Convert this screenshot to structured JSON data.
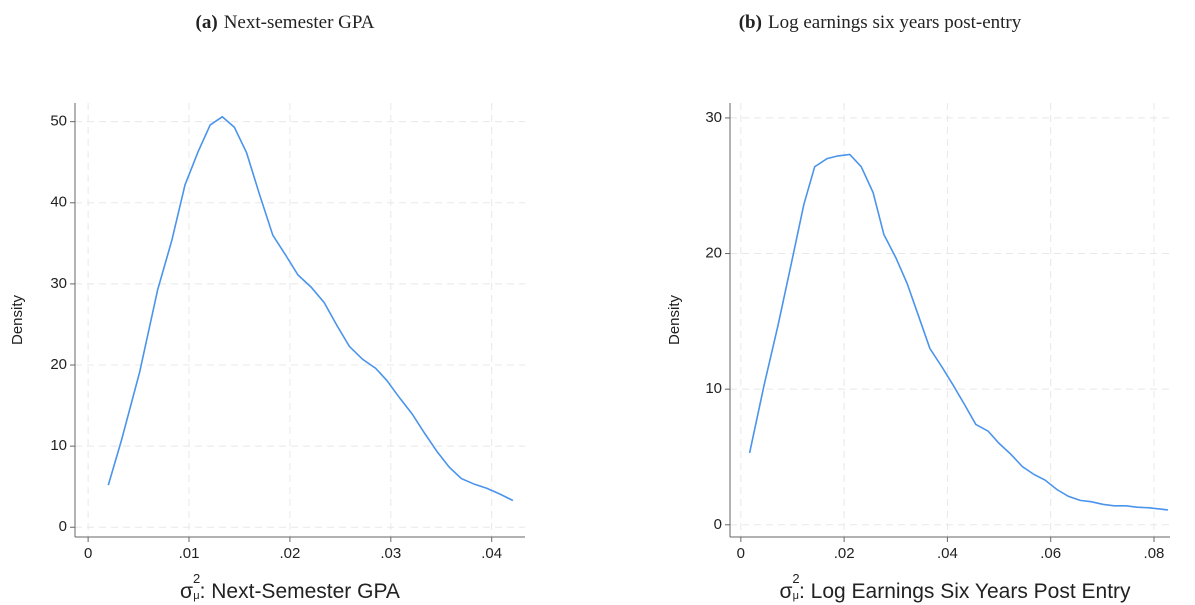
{
  "chart_data": [
    {
      "type": "line",
      "panel": "(a)",
      "title": "Next-semester GPA",
      "ylabel": "Density",
      "xlabel": {
        "symbol": "σ",
        "sup": "2",
        "sub": "μ",
        "text": ": Next-Semester GPA"
      },
      "color": "#4a94ec",
      "grid": true,
      "xlim": [
        -0.0013,
        0.0433
      ],
      "ylim": [
        -1.2,
        52.3
      ],
      "xticks": [
        0,
        {
          "value": 0.01,
          "label": ".01"
        },
        {
          "value": 0.02,
          "label": ".02"
        },
        {
          "value": 0.03,
          "label": ".03"
        },
        {
          "value": 0.04,
          "label": ".04"
        }
      ],
      "yticks": [
        0,
        10,
        20,
        30,
        40,
        50
      ],
      "x": [
        0.002,
        0.0033,
        0.0051,
        0.0069,
        0.0083,
        0.0096,
        0.0109,
        0.0121,
        0.0133,
        0.0145,
        0.0157,
        0.017,
        0.0183,
        0.0196,
        0.0208,
        0.0221,
        0.0234,
        0.0247,
        0.0259,
        0.0272,
        0.0285,
        0.0296,
        0.0309,
        0.0321,
        0.0334,
        0.0346,
        0.0358,
        0.037,
        0.0383,
        0.0395,
        0.0408,
        0.0421
      ],
      "values": [
        5.2,
        10.7,
        19.1,
        29.3,
        35.4,
        42.2,
        46.3,
        49.6,
        50.6,
        49.3,
        46.2,
        41,
        36,
        33.5,
        31.1,
        29.6,
        27.7,
        24.8,
        22.3,
        20.7,
        19.6,
        18.1,
        15.9,
        14,
        11.5,
        9.3,
        7.4,
        6,
        5.3,
        4.8,
        4.1,
        3.3
      ]
    },
    {
      "type": "line",
      "panel": "(b)",
      "title": "Log earnings six years post-entry",
      "ylabel": "Density",
      "xlabel": {
        "symbol": "σ",
        "sup": "2",
        "sub": "μ",
        "text": ": Log Earnings Six Years Post Entry"
      },
      "color": "#4a94ec",
      "grid": true,
      "xlim": [
        -0.0021,
        0.0831
      ],
      "ylim": [
        -0.9,
        31.1
      ],
      "xticks": [
        0,
        {
          "value": 0.02,
          "label": ".02"
        },
        {
          "value": 0.04,
          "label": ".04"
        },
        {
          "value": 0.06,
          "label": ".06"
        },
        {
          "value": 0.08,
          "label": ".08"
        }
      ],
      "yticks": [
        0,
        10,
        20,
        30
      ],
      "x": [
        0.0017,
        0.0045,
        0.0072,
        0.0099,
        0.0122,
        0.0143,
        0.0167,
        0.0188,
        0.0211,
        0.0233,
        0.0256,
        0.0277,
        0.03,
        0.0322,
        0.0345,
        0.0366,
        0.039,
        0.0411,
        0.0434,
        0.0455,
        0.0479,
        0.05,
        0.0523,
        0.0545,
        0.0568,
        0.0589,
        0.0612,
        0.0634,
        0.0657,
        0.0678,
        0.0702,
        0.0723,
        0.0746,
        0.0767,
        0.0791,
        0.0827
      ],
      "values": [
        5.3,
        10.3,
        14.7,
        19.5,
        23.6,
        26.4,
        27,
        27.2,
        27.3,
        26.4,
        24.5,
        21.4,
        19.7,
        17.8,
        15.3,
        13,
        11.6,
        10.3,
        8.8,
        7.4,
        6.9,
        6,
        5.2,
        4.3,
        3.7,
        3.3,
        2.6,
        2.1,
        1.8,
        1.7,
        1.5,
        1.4,
        1.4,
        1.3,
        1.25,
        1.1
      ]
    }
  ]
}
